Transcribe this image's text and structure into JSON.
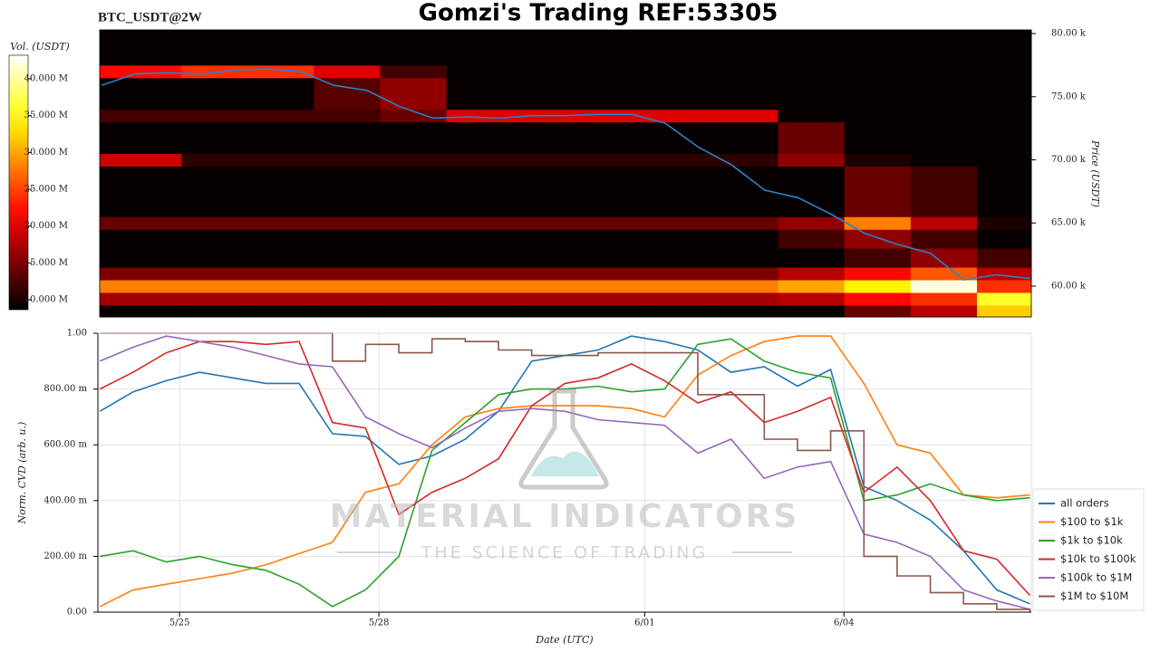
{
  "header": {
    "title": "Gomzi's Trading REF:53305",
    "symbol": "BTC_USDT@2W"
  },
  "watermark": {
    "brand": "MATERIAL INDICATORS",
    "tagline": "THE SCIENCE OF TRADING"
  },
  "chart_data": [
    {
      "type": "heatmap",
      "colormap": "hot",
      "ylabel": "Price (USDT)",
      "colorbar_label": "Vol. (USDT)",
      "xlim": [
        -0.23,
        13.82
      ],
      "ylim": [
        57560,
        80290
      ],
      "yticks": [
        {
          "value": 60000,
          "label": "60.00 k"
        },
        {
          "value": 65000,
          "label": "65.00 k"
        },
        {
          "value": 70000,
          "label": "70.00 k"
        },
        {
          "value": 75000,
          "label": "75.00 k"
        },
        {
          "value": 80000,
          "label": "80.00 k"
        }
      ],
      "clim": [
        8650000,
        43200000
      ],
      "cticks": [
        {
          "value": 10000000,
          "label": "10.000 M"
        },
        {
          "value": 15000000,
          "label": "15.000 M"
        },
        {
          "value": 20000000,
          "label": "20.000 M"
        },
        {
          "value": 25000000,
          "label": "25.000 M"
        },
        {
          "value": 30000000,
          "label": "30.000 M"
        },
        {
          "value": 35000000,
          "label": "35.000 M"
        },
        {
          "value": 40000000,
          "label": "40.000 M"
        }
      ],
      "x_bins": [
        -0.23,
        1,
        2,
        3,
        4,
        5,
        6,
        7,
        8,
        9,
        10,
        11,
        12,
        13,
        13.82
      ],
      "y_bins": [
        57560,
        58500,
        59500,
        60500,
        61500,
        63000,
        64500,
        65500,
        69500,
        70500,
        73000,
        74000,
        76500,
        77500,
        80290
      ],
      "values": [
        [
          9000000,
          9000000,
          9000000,
          9000000,
          9000000,
          9000000,
          9000000,
          9000000,
          9000000,
          9000000,
          9000000,
          14000000,
          18000000,
          32000000
        ],
        [
          17000000,
          17000000,
          17000000,
          17000000,
          17000000,
          17000000,
          17000000,
          17000000,
          17000000,
          17000000,
          18000000,
          22000000,
          24000000,
          36000000
        ],
        [
          28000000,
          28000000,
          28000000,
          28000000,
          28000000,
          28000000,
          28000000,
          28000000,
          28000000,
          28000000,
          30000000,
          34000000,
          42000000,
          24000000
        ],
        [
          15000000,
          15000000,
          15000000,
          15000000,
          15000000,
          15000000,
          15000000,
          15000000,
          15000000,
          15000000,
          18000000,
          22000000,
          26000000,
          18000000
        ],
        [
          9000000,
          9000000,
          9000000,
          9000000,
          9000000,
          9000000,
          9000000,
          9000000,
          9000000,
          9000000,
          9000000,
          12000000,
          16000000,
          12000000
        ],
        [
          9000000,
          9000000,
          9000000,
          9000000,
          9000000,
          9000000,
          9000000,
          9000000,
          9000000,
          9000000,
          12000000,
          16000000,
          12000000,
          9000000
        ],
        [
          14000000,
          14000000,
          14000000,
          14000000,
          14000000,
          14000000,
          14000000,
          14000000,
          14000000,
          14000000,
          16000000,
          28000000,
          18000000,
          10000000
        ],
        [
          9000000,
          9000000,
          9000000,
          9000000,
          9000000,
          9000000,
          9000000,
          9000000,
          9000000,
          9000000,
          9000000,
          14000000,
          12000000,
          9000000
        ],
        [
          19000000,
          11000000,
          11000000,
          11000000,
          11000000,
          11000000,
          11000000,
          11000000,
          11000000,
          11000000,
          16000000,
          10000000,
          9000000,
          9000000
        ],
        [
          9000000,
          9000000,
          9000000,
          9000000,
          9000000,
          9000000,
          9000000,
          9000000,
          9000000,
          9000000,
          14000000,
          9000000,
          9000000,
          9000000
        ],
        [
          12000000,
          12000000,
          12000000,
          12000000,
          14000000,
          20000000,
          20000000,
          20000000,
          20000000,
          20000000,
          9000000,
          9000000,
          9000000,
          9000000
        ],
        [
          9000000,
          9000000,
          9000000,
          13000000,
          16000000,
          9000000,
          9000000,
          9000000,
          9000000,
          9000000,
          9000000,
          9000000,
          9000000,
          9000000
        ],
        [
          22000000,
          24000000,
          24000000,
          20000000,
          12000000,
          9000000,
          9000000,
          9000000,
          9000000,
          9000000,
          9000000,
          9000000,
          9000000,
          9000000
        ],
        [
          9000000,
          9000000,
          9000000,
          9000000,
          9000000,
          9000000,
          9000000,
          9000000,
          9000000,
          9000000,
          9000000,
          9000000,
          9000000,
          9000000
        ]
      ],
      "line": {
        "color": "#2b83c6",
        "x": [
          -0.2,
          0.3,
          0.8,
          1.3,
          1.8,
          2.3,
          2.8,
          3.3,
          3.8,
          4.3,
          4.8,
          5.3,
          5.8,
          6.3,
          6.8,
          7.3,
          7.8,
          8.3,
          8.8,
          9.3,
          9.8,
          10.3,
          10.8,
          11.3,
          11.8,
          12.3,
          12.8,
          13.3,
          13.8
        ],
        "values": [
          75900,
          76800,
          76900,
          76800,
          77100,
          77200,
          77000,
          75900,
          75500,
          74200,
          73300,
          73400,
          73300,
          73500,
          73500,
          73600,
          73600,
          72900,
          71000,
          69600,
          67600,
          67000,
          65700,
          64200,
          63300,
          62600,
          60500,
          60900,
          60600
        ]
      }
    },
    {
      "type": "line",
      "xlabel": "Date (UTC)",
      "ylabel": "Norm. CVD (arb. u.)",
      "grid": true,
      "legend": "right",
      "xlim": [
        -0.23,
        13.82
      ],
      "ylim": [
        0,
        1
      ],
      "xticks": [
        {
          "value": 1,
          "label": "5/25"
        },
        {
          "value": 4,
          "label": "5/28"
        },
        {
          "value": 8,
          "label": "6/01"
        },
        {
          "value": 11,
          "label": "6/04"
        }
      ],
      "yticks": [
        {
          "value": 0,
          "label": "0.00"
        },
        {
          "value": 0.2,
          "label": "200.00 m"
        },
        {
          "value": 0.4,
          "label": "400.00 m"
        },
        {
          "value": 0.6,
          "label": "600.00 m"
        },
        {
          "value": 0.8,
          "label": "800.00 m"
        },
        {
          "value": 1,
          "label": "1.00"
        }
      ],
      "x": [
        -0.2,
        0.3,
        0.8,
        1.3,
        1.8,
        2.3,
        2.8,
        3.3,
        3.8,
        4.3,
        4.8,
        5.3,
        5.8,
        6.3,
        6.8,
        7.3,
        7.8,
        8.3,
        8.8,
        9.3,
        9.8,
        10.3,
        10.8,
        11.3,
        11.8,
        12.3,
        12.8,
        13.3,
        13.8
      ],
      "series": [
        {
          "name": "all orders",
          "color": "#1f77b4",
          "values": [
            0.72,
            0.79,
            0.83,
            0.86,
            0.84,
            0.82,
            0.82,
            0.64,
            0.63,
            0.53,
            0.56,
            0.62,
            0.72,
            0.9,
            0.92,
            0.94,
            0.99,
            0.97,
            0.94,
            0.86,
            0.88,
            0.81,
            0.87,
            0.45,
            0.4,
            0.33,
            0.22,
            0.08,
            0.03
          ]
        },
        {
          "name": "$100 to $1k",
          "color": "#ff7f0e",
          "values": [
            0.02,
            0.08,
            0.1,
            0.12,
            0.14,
            0.17,
            0.21,
            0.25,
            0.43,
            0.46,
            0.6,
            0.7,
            0.73,
            0.74,
            0.74,
            0.74,
            0.73,
            0.7,
            0.85,
            0.92,
            0.97,
            0.99,
            0.99,
            0.82,
            0.6,
            0.57,
            0.42,
            0.41,
            0.42
          ]
        },
        {
          "name": "$1k to $10k",
          "color": "#2ca02c",
          "values": [
            0.2,
            0.22,
            0.18,
            0.2,
            0.17,
            0.15,
            0.1,
            0.02,
            0.08,
            0.2,
            0.58,
            0.68,
            0.78,
            0.8,
            0.8,
            0.81,
            0.79,
            0.8,
            0.96,
            0.98,
            0.9,
            0.86,
            0.84,
            0.4,
            0.42,
            0.46,
            0.42,
            0.4,
            0.41
          ]
        },
        {
          "name": "$10k to $100k",
          "color": "#d62728",
          "values": [
            0.8,
            0.86,
            0.93,
            0.97,
            0.97,
            0.96,
            0.97,
            0.68,
            0.66,
            0.35,
            0.43,
            0.48,
            0.55,
            0.74,
            0.82,
            0.84,
            0.89,
            0.83,
            0.75,
            0.79,
            0.68,
            0.72,
            0.77,
            0.43,
            0.52,
            0.4,
            0.22,
            0.19,
            0.06
          ]
        },
        {
          "name": "$100k to $1M",
          "color": "#9467bd",
          "values": [
            0.9,
            0.95,
            0.99,
            0.97,
            0.95,
            0.92,
            0.89,
            0.88,
            0.7,
            0.64,
            0.59,
            0.66,
            0.72,
            0.73,
            0.72,
            0.69,
            0.68,
            0.67,
            0.57,
            0.62,
            0.48,
            0.52,
            0.54,
            0.28,
            0.25,
            0.2,
            0.08,
            0.04,
            0.01
          ]
        },
        {
          "name": "$1M to $10M",
          "color": "#8c564b",
          "drawstyle": "steps-post",
          "values": [
            1,
            1,
            1,
            1,
            1,
            1,
            1,
            0.9,
            0.96,
            0.93,
            0.98,
            0.97,
            0.94,
            0.92,
            0.92,
            0.93,
            0.93,
            0.93,
            0.78,
            0.78,
            0.62,
            0.58,
            0.65,
            0.2,
            0.13,
            0.07,
            0.03,
            0.01,
            0
          ]
        }
      ]
    }
  ]
}
